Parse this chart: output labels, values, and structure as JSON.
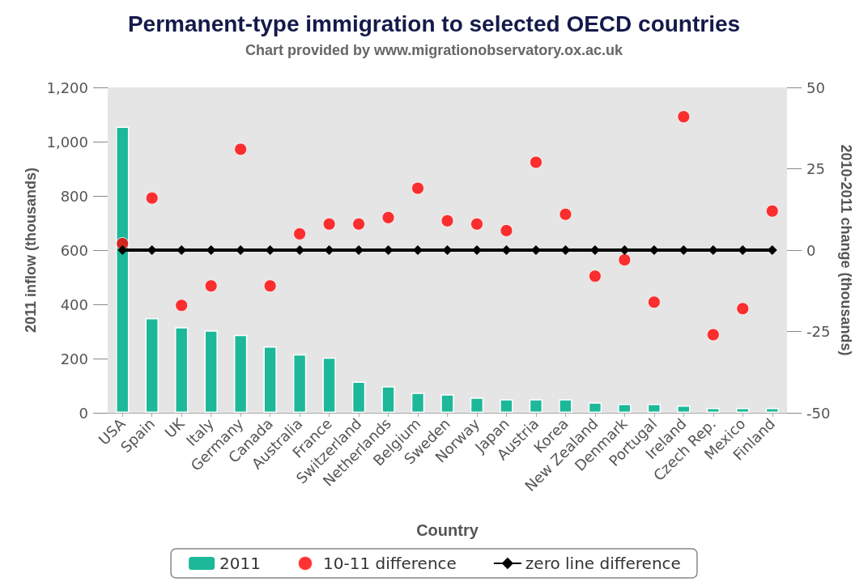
{
  "chart_data": {
    "type": "bar",
    "title": "Permanent-type immigration to selected OECD countries",
    "subtitle": "Chart provided by www.migrationobservatory.ox.ac.uk",
    "xlabel": "Country",
    "ylabel": "2011 inflow (thousands)",
    "y2label": "2010-2011 change (thousands)",
    "categories": [
      "USA",
      "Spain",
      "UK",
      "Italy",
      "Germany",
      "Canada",
      "Australia",
      "France",
      "Switzerland",
      "Netherlands",
      "Belgium",
      "Sweden",
      "Norway",
      "Japan",
      "Austria",
      "Korea",
      "New Zealand",
      "Denmark",
      "Portugal",
      "Ireland",
      "Czech Rep.",
      "Mexico",
      "Finland"
    ],
    "series": [
      {
        "name": "2011",
        "color": "#1cb899",
        "values": [
          1055,
          349,
          316,
          304,
          287,
          245,
          216,
          204,
          115,
          98,
          74,
          68,
          56,
          50,
          50,
          50,
          38,
          33,
          33,
          27,
          18,
          18,
          18
        ]
      },
      {
        "name": "10-11 difference",
        "type": "scatter",
        "axis": "y2",
        "marker": "circle",
        "color": "#ff0000",
        "values": [
          2,
          16,
          -17,
          -11,
          31,
          -11,
          5,
          8,
          8,
          10,
          19,
          9,
          8,
          6,
          27,
          11,
          -8,
          -3,
          -16,
          41,
          -26,
          -18,
          12
        ]
      },
      {
        "name": "zero line difference",
        "type": "line",
        "axis": "y2",
        "marker": "diamond",
        "line_style": "solid",
        "color": "#000000",
        "values": [
          0,
          0,
          0,
          0,
          0,
          0,
          0,
          0,
          0,
          0,
          0,
          0,
          0,
          0,
          0,
          0,
          0,
          0,
          0,
          0,
          0,
          0,
          0
        ]
      }
    ],
    "ylim": [
      0,
      1200
    ],
    "yticks": [
      0,
      200,
      400,
      600,
      800,
      {
        "value": 1000,
        "label": "1,000"
      },
      {
        "value": 1200,
        "label": "1,200"
      }
    ],
    "y2lim": [
      -50,
      50
    ],
    "y2ticks": [
      -50,
      -25,
      0,
      25,
      50
    ],
    "grid": false,
    "legend": "bottom"
  }
}
